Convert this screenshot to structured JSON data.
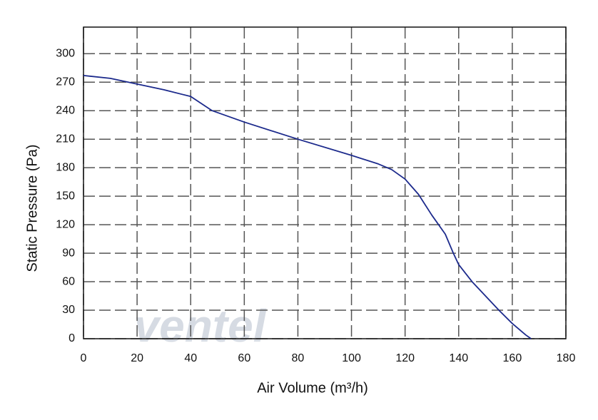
{
  "chart_data": {
    "type": "line",
    "watermark": "ventel",
    "x_label": "Air Volume (m³/h)",
    "y_label": "Static Pressure (Pa)",
    "x": [
      0,
      10,
      20,
      30,
      40,
      48,
      60,
      80,
      100,
      110,
      115,
      120,
      125,
      130,
      135,
      138,
      140,
      145,
      150,
      155,
      160,
      165,
      167
    ],
    "series": [
      {
        "name": "Static Pressure",
        "color": "#1c2a8c",
        "values": [
          277,
          274,
          268,
          262,
          255,
          240,
          228,
          210,
          193,
          184,
          178,
          168,
          152,
          130,
          110,
          90,
          78,
          60,
          45,
          30,
          16,
          4,
          0
        ]
      }
    ],
    "xlim": [
      0,
      180
    ],
    "xticks": [
      0,
      20,
      40,
      60,
      80,
      100,
      120,
      140,
      160,
      180
    ],
    "ylim": [
      0,
      328
    ],
    "yticks": [
      0,
      30,
      60,
      90,
      120,
      150,
      180,
      210,
      240,
      270,
      300
    ],
    "grid": true
  }
}
